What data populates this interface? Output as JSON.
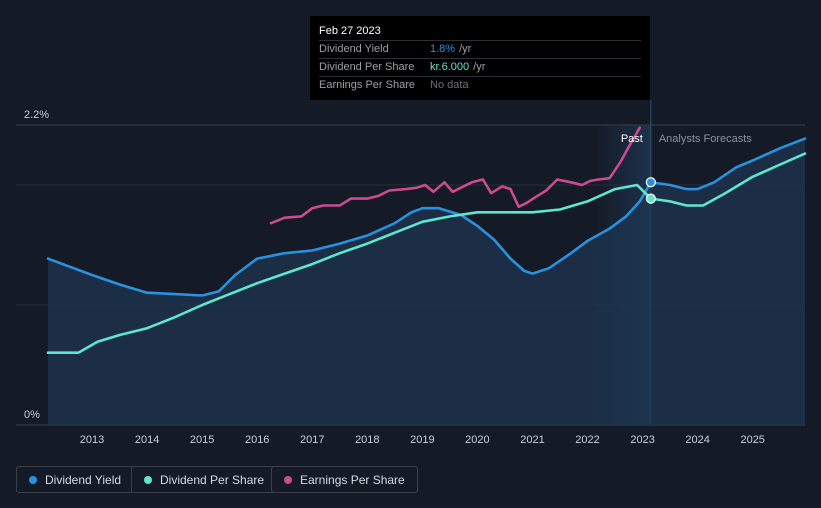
{
  "chart_data": {
    "type": "line",
    "x_range": [
      2012.2,
      2025.95
    ],
    "ylim_pct": [
      0,
      2.2
    ],
    "y_tick_labels": [
      "0%",
      "2.2%"
    ],
    "x_ticks": [
      2013,
      2014,
      2015,
      2016,
      2017,
      2018,
      2019,
      2020,
      2021,
      2022,
      2023,
      2024,
      2025
    ],
    "past_label": "Past",
    "forecast_label": "Analysts Forecasts",
    "forecast_start": 2023.15,
    "series": [
      {
        "name": "Dividend Yield",
        "color": "#2a91e0",
        "unit": "%",
        "area": true,
        "points": [
          [
            2012.2,
            1.22
          ],
          [
            2012.6,
            1.16
          ],
          [
            2013.0,
            1.1
          ],
          [
            2013.5,
            1.03
          ],
          [
            2014.0,
            0.97
          ],
          [
            2014.5,
            0.96
          ],
          [
            2015.0,
            0.95
          ],
          [
            2015.3,
            0.98
          ],
          [
            2015.6,
            1.1
          ],
          [
            2016.0,
            1.22
          ],
          [
            2016.5,
            1.26
          ],
          [
            2017.0,
            1.28
          ],
          [
            2017.5,
            1.33
          ],
          [
            2018.0,
            1.39
          ],
          [
            2018.5,
            1.48
          ],
          [
            2018.8,
            1.56
          ],
          [
            2019.0,
            1.59
          ],
          [
            2019.3,
            1.59
          ],
          [
            2019.7,
            1.54
          ],
          [
            2020.0,
            1.46
          ],
          [
            2020.3,
            1.36
          ],
          [
            2020.6,
            1.22
          ],
          [
            2020.85,
            1.13
          ],
          [
            2021.0,
            1.11
          ],
          [
            2021.3,
            1.15
          ],
          [
            2021.7,
            1.26
          ],
          [
            2022.0,
            1.35
          ],
          [
            2022.4,
            1.44
          ],
          [
            2022.7,
            1.53
          ],
          [
            2022.95,
            1.64
          ],
          [
            2023.15,
            1.78
          ],
          [
            2023.5,
            1.76
          ],
          [
            2023.8,
            1.73
          ],
          [
            2024.0,
            1.73
          ],
          [
            2024.3,
            1.78
          ],
          [
            2024.7,
            1.89
          ],
          [
            2025.0,
            1.94
          ],
          [
            2025.5,
            2.03
          ],
          [
            2025.95,
            2.1
          ]
        ]
      },
      {
        "name": "Dividend Per Share",
        "color": "#5ee6cf",
        "unit": "kr",
        "area": false,
        "points": [
          [
            2012.2,
            0.53
          ],
          [
            2012.75,
            0.53
          ],
          [
            2013.1,
            0.61
          ],
          [
            2013.5,
            0.66
          ],
          [
            2014.0,
            0.71
          ],
          [
            2014.5,
            0.79
          ],
          [
            2015.0,
            0.88
          ],
          [
            2015.5,
            0.96
          ],
          [
            2016.0,
            1.04
          ],
          [
            2016.5,
            1.11
          ],
          [
            2017.0,
            1.18
          ],
          [
            2017.5,
            1.26
          ],
          [
            2018.0,
            1.33
          ],
          [
            2018.5,
            1.41
          ],
          [
            2019.0,
            1.49
          ],
          [
            2019.5,
            1.53
          ],
          [
            2020.0,
            1.56
          ],
          [
            2020.5,
            1.56
          ],
          [
            2021.0,
            1.56
          ],
          [
            2021.5,
            1.58
          ],
          [
            2022.0,
            1.64
          ],
          [
            2022.5,
            1.73
          ],
          [
            2022.9,
            1.76
          ],
          [
            2023.15,
            1.66
          ],
          [
            2023.5,
            1.64
          ],
          [
            2023.8,
            1.61
          ],
          [
            2024.1,
            1.61
          ],
          [
            2024.5,
            1.7
          ],
          [
            2025.0,
            1.82
          ],
          [
            2025.5,
            1.91
          ],
          [
            2025.95,
            1.99
          ]
        ]
      },
      {
        "name": "Earnings Per Share",
        "color": "#cc4b8d",
        "unit": "kr",
        "area": false,
        "points": [
          [
            2016.25,
            1.48
          ],
          [
            2016.5,
            1.52
          ],
          [
            2016.8,
            1.53
          ],
          [
            2017.0,
            1.59
          ],
          [
            2017.2,
            1.61
          ],
          [
            2017.5,
            1.61
          ],
          [
            2017.7,
            1.66
          ],
          [
            2018.0,
            1.66
          ],
          [
            2018.2,
            1.68
          ],
          [
            2018.4,
            1.72
          ],
          [
            2018.7,
            1.73
          ],
          [
            2018.9,
            1.74
          ],
          [
            2019.05,
            1.76
          ],
          [
            2019.2,
            1.71
          ],
          [
            2019.4,
            1.78
          ],
          [
            2019.55,
            1.71
          ],
          [
            2019.7,
            1.74
          ],
          [
            2019.9,
            1.78
          ],
          [
            2020.1,
            1.8
          ],
          [
            2020.25,
            1.7
          ],
          [
            2020.45,
            1.75
          ],
          [
            2020.6,
            1.73
          ],
          [
            2020.75,
            1.6
          ],
          [
            2020.9,
            1.63
          ],
          [
            2021.05,
            1.67
          ],
          [
            2021.25,
            1.72
          ],
          [
            2021.45,
            1.8
          ],
          [
            2021.7,
            1.78
          ],
          [
            2021.9,
            1.76
          ],
          [
            2022.05,
            1.79
          ],
          [
            2022.2,
            1.8
          ],
          [
            2022.4,
            1.81
          ],
          [
            2022.6,
            1.93
          ],
          [
            2022.75,
            2.04
          ],
          [
            2022.95,
            2.18
          ]
        ]
      }
    ],
    "markers": [
      {
        "series": "Dividend Yield",
        "x": 2023.15,
        "y": 1.78,
        "color": "#2a91e0"
      },
      {
        "series": "Dividend Per Share",
        "x": 2023.15,
        "y": 1.66,
        "color": "#5ee6cf"
      }
    ]
  },
  "tooltip": {
    "date": "Feb 27 2023",
    "rows": [
      {
        "label": "Dividend Yield",
        "value": "1.8%",
        "unit": "/yr",
        "color": "#2a91e0"
      },
      {
        "label": "Dividend Per Share",
        "value": "kr.6.000",
        "unit": "/yr",
        "color": "#5ee6cf"
      },
      {
        "label": "Earnings Per Share",
        "value": "",
        "unit": "",
        "nodata": "No data",
        "color": "#6c727b"
      }
    ]
  },
  "legend": [
    {
      "label": "Dividend Yield",
      "color": "#2a91e0"
    },
    {
      "label": "Dividend Per Share",
      "color": "#5ee6cf"
    },
    {
      "label": "Earnings Per Share",
      "color": "#cc4b8d"
    }
  ]
}
